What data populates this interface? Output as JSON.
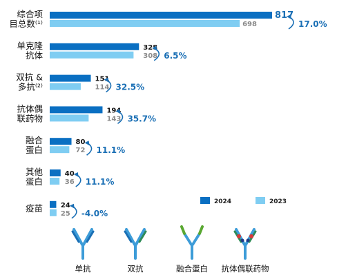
{
  "chart_data": {
    "type": "bar",
    "orientation": "horizontal",
    "categories": [
      [
        "综合项",
        "目总数⁽¹⁾"
      ],
      [
        "单克隆",
        "抗体"
      ],
      [
        "双抗 &",
        "多抗⁽²⁾"
      ],
      [
        "抗体偶",
        "联药物"
      ],
      [
        "融合",
        "蛋白"
      ],
      [
        "其他",
        "蛋白"
      ],
      [
        "疫苗"
      ]
    ],
    "series": [
      {
        "name": "2024",
        "color": "#0a6fc2",
        "values": [
          817,
          328,
          151,
          194,
          80,
          40,
          24
        ]
      },
      {
        "name": "2023",
        "color": "#7fcdf2",
        "values": [
          698,
          308,
          114,
          143,
          72,
          36,
          25
        ]
      }
    ],
    "growth_labels": [
      "17.0%",
      "6.5%",
      "32.5%",
      "35.7%",
      "11.1%",
      "11.1%",
      "-4.0%"
    ],
    "xlim": [
      0,
      817
    ],
    "legend_position": "bottom-right",
    "grid": false
  },
  "legend": [
    {
      "name": "2024",
      "color": "#0a6fc2"
    },
    {
      "name": "2023",
      "color": "#7fcdf2"
    }
  ],
  "accent_color": "#1a6fb5",
  "antibody_types": [
    {
      "label": "单抗",
      "icon": "monoclonal-antibody-icon"
    },
    {
      "label": "双抗",
      "icon": "bispecific-antibody-icon"
    },
    {
      "label": "融合蛋白",
      "icon": "fusion-protein-icon"
    },
    {
      "label": "抗体偶联药物",
      "icon": "antibody-drug-conjugate-icon"
    }
  ]
}
